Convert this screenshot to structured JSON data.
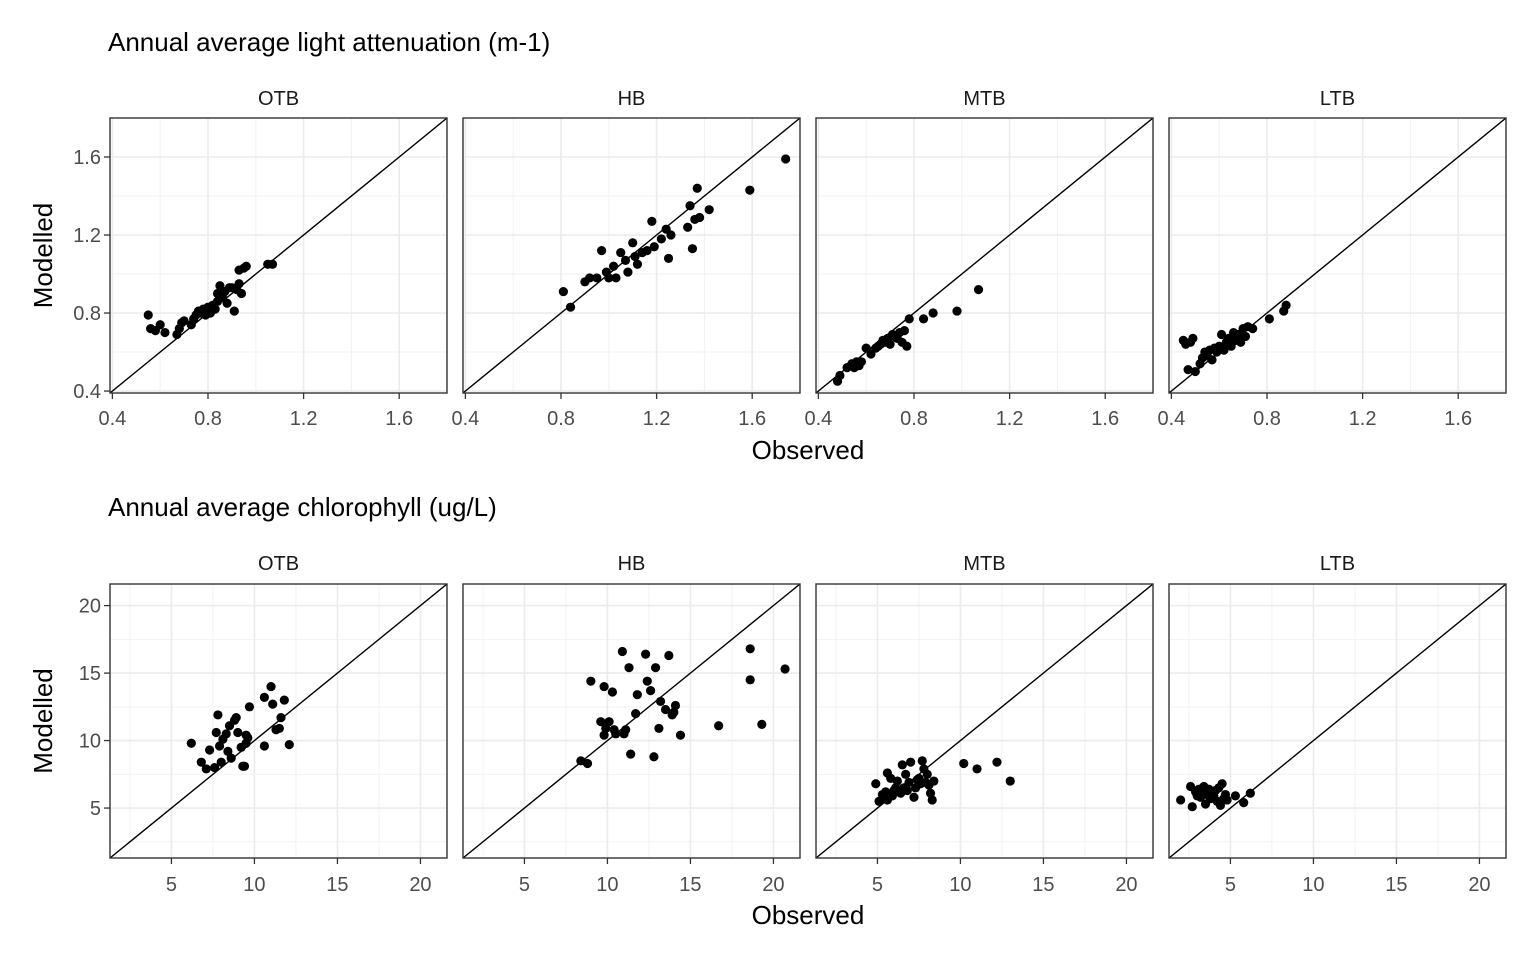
{
  "chart_data": [
    {
      "type": "scatter",
      "title": "Annual average light attenuation (m-1)",
      "xlabel": "Observed",
      "ylabel": "Modelled",
      "xlim": [
        0.39,
        1.8
      ],
      "ylim": [
        0.39,
        1.8
      ],
      "ticks": [
        0.4,
        0.8,
        1.2,
        1.6
      ],
      "tick_labels": [
        "0.4",
        "0.8",
        "1.2",
        "1.6"
      ],
      "reference_line": "y = x",
      "grid": true,
      "panels": [
        {
          "name": "OTB",
          "points": [
            [
              0.55,
              0.79
            ],
            [
              0.56,
              0.72
            ],
            [
              0.58,
              0.71
            ],
            [
              0.6,
              0.74
            ],
            [
              0.62,
              0.7
            ],
            [
              0.67,
              0.69
            ],
            [
              0.68,
              0.72
            ],
            [
              0.69,
              0.75
            ],
            [
              0.7,
              0.76
            ],
            [
              0.73,
              0.74
            ],
            [
              0.74,
              0.77
            ],
            [
              0.75,
              0.79
            ],
            [
              0.76,
              0.81
            ],
            [
              0.77,
              0.8
            ],
            [
              0.78,
              0.82
            ],
            [
              0.79,
              0.79
            ],
            [
              0.8,
              0.83
            ],
            [
              0.81,
              0.8
            ],
            [
              0.82,
              0.84
            ],
            [
              0.83,
              0.82
            ],
            [
              0.84,
              0.86
            ],
            [
              0.84,
              0.9
            ],
            [
              0.85,
              0.94
            ],
            [
              0.86,
              0.88
            ],
            [
              0.87,
              0.91
            ],
            [
              0.88,
              0.85
            ],
            [
              0.89,
              0.93
            ],
            [
              0.9,
              0.93
            ],
            [
              0.91,
              0.81
            ],
            [
              0.92,
              0.92
            ],
            [
              0.93,
              0.95
            ],
            [
              0.93,
              1.02
            ],
            [
              0.94,
              0.9
            ],
            [
              0.95,
              1.03
            ],
            [
              0.96,
              1.04
            ],
            [
              1.05,
              1.05
            ],
            [
              1.07,
              1.05
            ]
          ]
        },
        {
          "name": "HB",
          "points": [
            [
              0.81,
              0.91
            ],
            [
              0.84,
              0.83
            ],
            [
              0.9,
              0.96
            ],
            [
              0.92,
              0.98
            ],
            [
              0.95,
              0.98
            ],
            [
              0.97,
              1.12
            ],
            [
              0.99,
              1.01
            ],
            [
              1.0,
              0.98
            ],
            [
              1.02,
              1.04
            ],
            [
              1.03,
              0.98
            ],
            [
              1.05,
              1.11
            ],
            [
              1.07,
              1.07
            ],
            [
              1.08,
              1.01
            ],
            [
              1.1,
              1.16
            ],
            [
              1.11,
              1.09
            ],
            [
              1.12,
              1.05
            ],
            [
              1.14,
              1.11
            ],
            [
              1.16,
              1.12
            ],
            [
              1.18,
              1.27
            ],
            [
              1.19,
              1.14
            ],
            [
              1.22,
              1.18
            ],
            [
              1.24,
              1.23
            ],
            [
              1.25,
              1.08
            ],
            [
              1.26,
              1.2
            ],
            [
              1.33,
              1.24
            ],
            [
              1.34,
              1.35
            ],
            [
              1.35,
              1.13
            ],
            [
              1.36,
              1.28
            ],
            [
              1.37,
              1.44
            ],
            [
              1.38,
              1.29
            ],
            [
              1.42,
              1.33
            ],
            [
              1.59,
              1.43
            ],
            [
              1.74,
              1.59
            ]
          ]
        },
        {
          "name": "MTB",
          "points": [
            [
              0.48,
              0.45
            ],
            [
              0.49,
              0.48
            ],
            [
              0.52,
              0.52
            ],
            [
              0.54,
              0.54
            ],
            [
              0.55,
              0.52
            ],
            [
              0.56,
              0.55
            ],
            [
              0.57,
              0.53
            ],
            [
              0.58,
              0.55
            ],
            [
              0.6,
              0.62
            ],
            [
              0.62,
              0.59
            ],
            [
              0.64,
              0.62
            ],
            [
              0.65,
              0.63
            ],
            [
              0.66,
              0.64
            ],
            [
              0.67,
              0.66
            ],
            [
              0.68,
              0.65
            ],
            [
              0.69,
              0.67
            ],
            [
              0.7,
              0.64
            ],
            [
              0.71,
              0.69
            ],
            [
              0.72,
              0.68
            ],
            [
              0.73,
              0.67
            ],
            [
              0.74,
              0.7
            ],
            [
              0.75,
              0.65
            ],
            [
              0.76,
              0.71
            ],
            [
              0.77,
              0.63
            ],
            [
              0.78,
              0.77
            ],
            [
              0.84,
              0.77
            ],
            [
              0.88,
              0.8
            ],
            [
              0.98,
              0.81
            ],
            [
              1.07,
              0.92
            ]
          ]
        },
        {
          "name": "LTB",
          "points": [
            [
              0.45,
              0.66
            ],
            [
              0.46,
              0.64
            ],
            [
              0.47,
              0.51
            ],
            [
              0.48,
              0.65
            ],
            [
              0.49,
              0.67
            ],
            [
              0.5,
              0.5
            ],
            [
              0.52,
              0.54
            ],
            [
              0.53,
              0.57
            ],
            [
              0.54,
              0.6
            ],
            [
              0.55,
              0.58
            ],
            [
              0.56,
              0.61
            ],
            [
              0.57,
              0.56
            ],
            [
              0.58,
              0.62
            ],
            [
              0.59,
              0.6
            ],
            [
              0.6,
              0.63
            ],
            [
              0.61,
              0.69
            ],
            [
              0.62,
              0.61
            ],
            [
              0.63,
              0.65
            ],
            [
              0.64,
              0.67
            ],
            [
              0.65,
              0.63
            ],
            [
              0.66,
              0.7
            ],
            [
              0.67,
              0.66
            ],
            [
              0.68,
              0.69
            ],
            [
              0.69,
              0.65
            ],
            [
              0.7,
              0.72
            ],
            [
              0.71,
              0.68
            ],
            [
              0.72,
              0.73
            ],
            [
              0.74,
              0.72
            ],
            [
              0.81,
              0.77
            ],
            [
              0.87,
              0.81
            ],
            [
              0.88,
              0.84
            ]
          ]
        }
      ]
    },
    {
      "type": "scatter",
      "title": "Annual average chlorophyll (ug/L)",
      "xlabel": "Observed",
      "ylabel": "Modelled",
      "xlim": [
        1.3,
        21.6
      ],
      "ylim": [
        1.3,
        21.6
      ],
      "ticks": [
        5,
        10,
        15,
        20
      ],
      "tick_labels": [
        "5",
        "10",
        "15",
        "20"
      ],
      "reference_line": "y = x",
      "grid": true,
      "panels": [
        {
          "name": "OTB",
          "points": [
            [
              6.2,
              9.8
            ],
            [
              6.8,
              8.4
            ],
            [
              7.1,
              7.9
            ],
            [
              7.3,
              9.3
            ],
            [
              7.6,
              8
            ],
            [
              7.7,
              10.6
            ],
            [
              7.8,
              11.9
            ],
            [
              7.9,
              9.6
            ],
            [
              8.0,
              8.4
            ],
            [
              8.1,
              10.1
            ],
            [
              8.3,
              10.5
            ],
            [
              8.4,
              9.2
            ],
            [
              8.5,
              11.1
            ],
            [
              8.6,
              8.7
            ],
            [
              8.8,
              11.5
            ],
            [
              8.9,
              11.7
            ],
            [
              9.0,
              10.6
            ],
            [
              9.2,
              9.5
            ],
            [
              9.3,
              8.1
            ],
            [
              9.4,
              8.1
            ],
            [
              9.5,
              10.4
            ],
            [
              9.5,
              9.8
            ],
            [
              9.6,
              10.2
            ],
            [
              9.7,
              12.5
            ],
            [
              10.6,
              9.6
            ],
            [
              10.6,
              13.2
            ],
            [
              11.0,
              14
            ],
            [
              11.1,
              12.7
            ],
            [
              11.3,
              10.8
            ],
            [
              11.5,
              10.9
            ],
            [
              11.6,
              11.7
            ],
            [
              11.8,
              13
            ],
            [
              12.1,
              9.7
            ]
          ]
        },
        {
          "name": "HB",
          "points": [
            [
              8.4,
              8.5
            ],
            [
              8.8,
              8.3
            ],
            [
              9.0,
              14.4
            ],
            [
              9.6,
              11.4
            ],
            [
              9.8,
              10.4
            ],
            [
              9.8,
              14
            ],
            [
              9.9,
              10.9
            ],
            [
              10.1,
              11.4
            ],
            [
              10.3,
              13.6
            ],
            [
              10.4,
              10.8
            ],
            [
              10.5,
              10.5
            ],
            [
              10.9,
              16.6
            ],
            [
              11.0,
              10.5
            ],
            [
              11.1,
              10.8
            ],
            [
              11.3,
              15.4
            ],
            [
              11.4,
              9
            ],
            [
              11.7,
              12
            ],
            [
              11.8,
              13.4
            ],
            [
              12.3,
              16.4
            ],
            [
              12.4,
              14.4
            ],
            [
              12.6,
              13.7
            ],
            [
              12.8,
              8.8
            ],
            [
              12.9,
              15.4
            ],
            [
              13.1,
              10.9
            ],
            [
              13.2,
              12.9
            ],
            [
              13.5,
              12.3
            ],
            [
              13.7,
              16.3
            ],
            [
              13.9,
              11.9
            ],
            [
              14.0,
              12.1
            ],
            [
              14.1,
              12.6
            ],
            [
              14.4,
              10.4
            ],
            [
              16.7,
              11.1
            ],
            [
              18.6,
              16.8
            ],
            [
              18.6,
              14.5
            ],
            [
              19.3,
              11.2
            ],
            [
              20.7,
              15.3
            ]
          ]
        },
        {
          "name": "MTB",
          "points": [
            [
              4.9,
              6.8
            ],
            [
              5.1,
              5.5
            ],
            [
              5.3,
              6
            ],
            [
              5.4,
              5.7
            ],
            [
              5.5,
              6.2
            ],
            [
              5.6,
              5.6
            ],
            [
              5.6,
              7.6
            ],
            [
              5.8,
              7.2
            ],
            [
              5.9,
              5.9
            ],
            [
              6.0,
              6.3
            ],
            [
              6.1,
              6.5
            ],
            [
              6.2,
              7
            ],
            [
              6.4,
              6.1
            ],
            [
              6.5,
              8.2
            ],
            [
              6.6,
              6.5
            ],
            [
              6.7,
              7.5
            ],
            [
              6.8,
              6.3
            ],
            [
              6.9,
              6.9
            ],
            [
              7.0,
              8.4
            ],
            [
              7.2,
              5.8
            ],
            [
              7.3,
              6.5
            ],
            [
              7.4,
              7.1
            ],
            [
              7.5,
              7.2
            ],
            [
              7.6,
              6.8
            ],
            [
              7.7,
              8.5
            ],
            [
              7.8,
              7.9
            ],
            [
              7.9,
              6.9
            ],
            [
              8.0,
              7.5
            ],
            [
              8.1,
              6.7
            ],
            [
              8.2,
              6.1
            ],
            [
              8.3,
              5.6
            ],
            [
              8.4,
              7
            ],
            [
              10.2,
              8.3
            ],
            [
              11.0,
              7.9
            ],
            [
              12.2,
              8.4
            ],
            [
              13.0,
              7
            ]
          ]
        },
        {
          "name": "LTB",
          "points": [
            [
              2.0,
              5.6
            ],
            [
              2.6,
              6.6
            ],
            [
              2.7,
              5.1
            ],
            [
              2.9,
              6.2
            ],
            [
              3.0,
              5.9
            ],
            [
              3.1,
              6.4
            ],
            [
              3.2,
              5.8
            ],
            [
              3.3,
              6.1
            ],
            [
              3.4,
              6.6
            ],
            [
              3.5,
              5.3
            ],
            [
              3.6,
              6
            ],
            [
              3.7,
              6.4
            ],
            [
              3.8,
              5.7
            ],
            [
              3.9,
              6.2
            ],
            [
              4.0,
              5.9
            ],
            [
              4.1,
              6.3
            ],
            [
              4.2,
              5.5
            ],
            [
              4.3,
              6.5
            ],
            [
              4.4,
              5.2
            ],
            [
              4.5,
              6.8
            ],
            [
              4.6,
              5.7
            ],
            [
              4.7,
              6
            ],
            [
              4.8,
              5.6
            ],
            [
              5.3,
              5.9
            ],
            [
              5.8,
              5.4
            ],
            [
              6.2,
              6.1
            ]
          ]
        }
      ]
    }
  ]
}
